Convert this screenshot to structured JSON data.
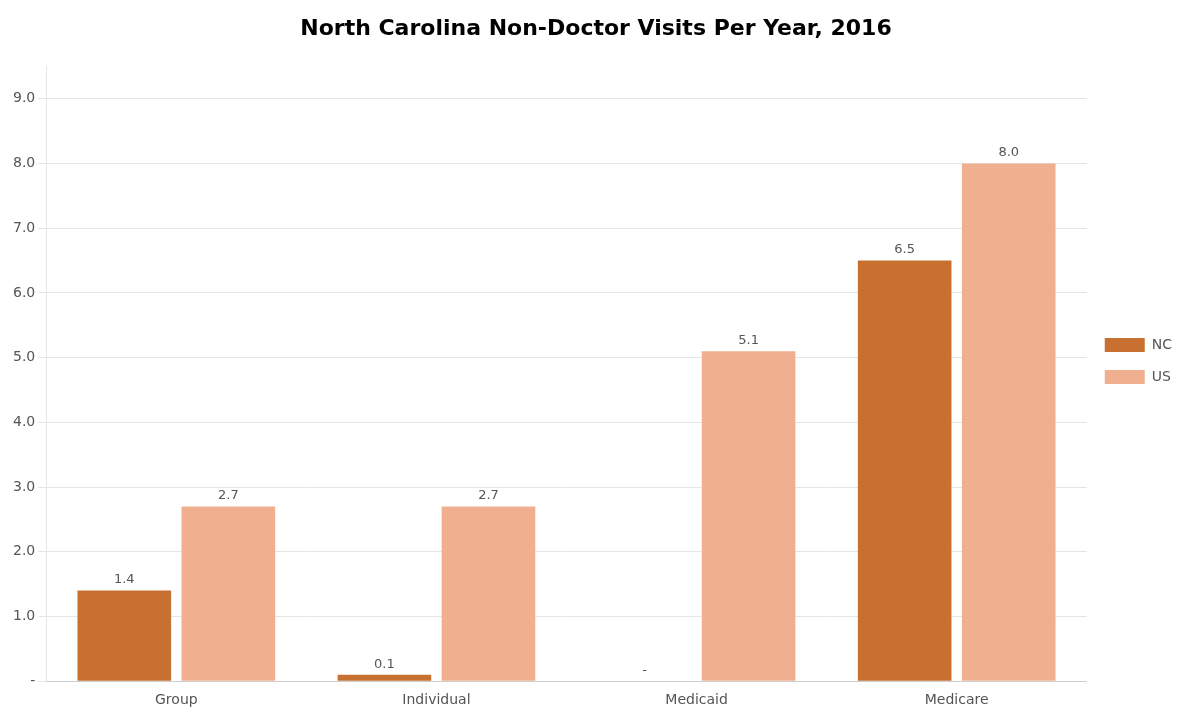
{
  "chart_data": {
    "type": "bar",
    "title": "North Carolina Non-Doctor Visits Per Year, 2016",
    "categories": [
      "Group",
      "Individual",
      "Medicaid",
      "Medicare"
    ],
    "series": [
      {
        "name": "NC",
        "color": "#C87030",
        "values": [
          1.4,
          0.1,
          0.0,
          6.5
        ],
        "value_labels": [
          "1.4",
          "0.1",
          "-",
          "6.5"
        ]
      },
      {
        "name": "US",
        "color": "#F0B090",
        "values": [
          2.7,
          2.7,
          5.1,
          8.0
        ],
        "value_labels": [
          "2.7",
          "2.7",
          "5.1",
          "8.0"
        ]
      }
    ],
    "ylim": [
      0,
      9.5
    ],
    "yticks": [
      {
        "value": 0,
        "label": "-"
      },
      {
        "value": 1.0,
        "label": "1.0"
      },
      {
        "value": 2.0,
        "label": "2.0"
      },
      {
        "value": 3.0,
        "label": "3.0"
      },
      {
        "value": 4.0,
        "label": "4.0"
      },
      {
        "value": 5.0,
        "label": "5.0"
      },
      {
        "value": 6.0,
        "label": "6.0"
      },
      {
        "value": 7.0,
        "label": "7.0"
      },
      {
        "value": 8.0,
        "label": "8.0"
      },
      {
        "value": 9.0,
        "label": "9.0"
      }
    ],
    "grid": true,
    "legend": "right",
    "data_labels": true
  }
}
